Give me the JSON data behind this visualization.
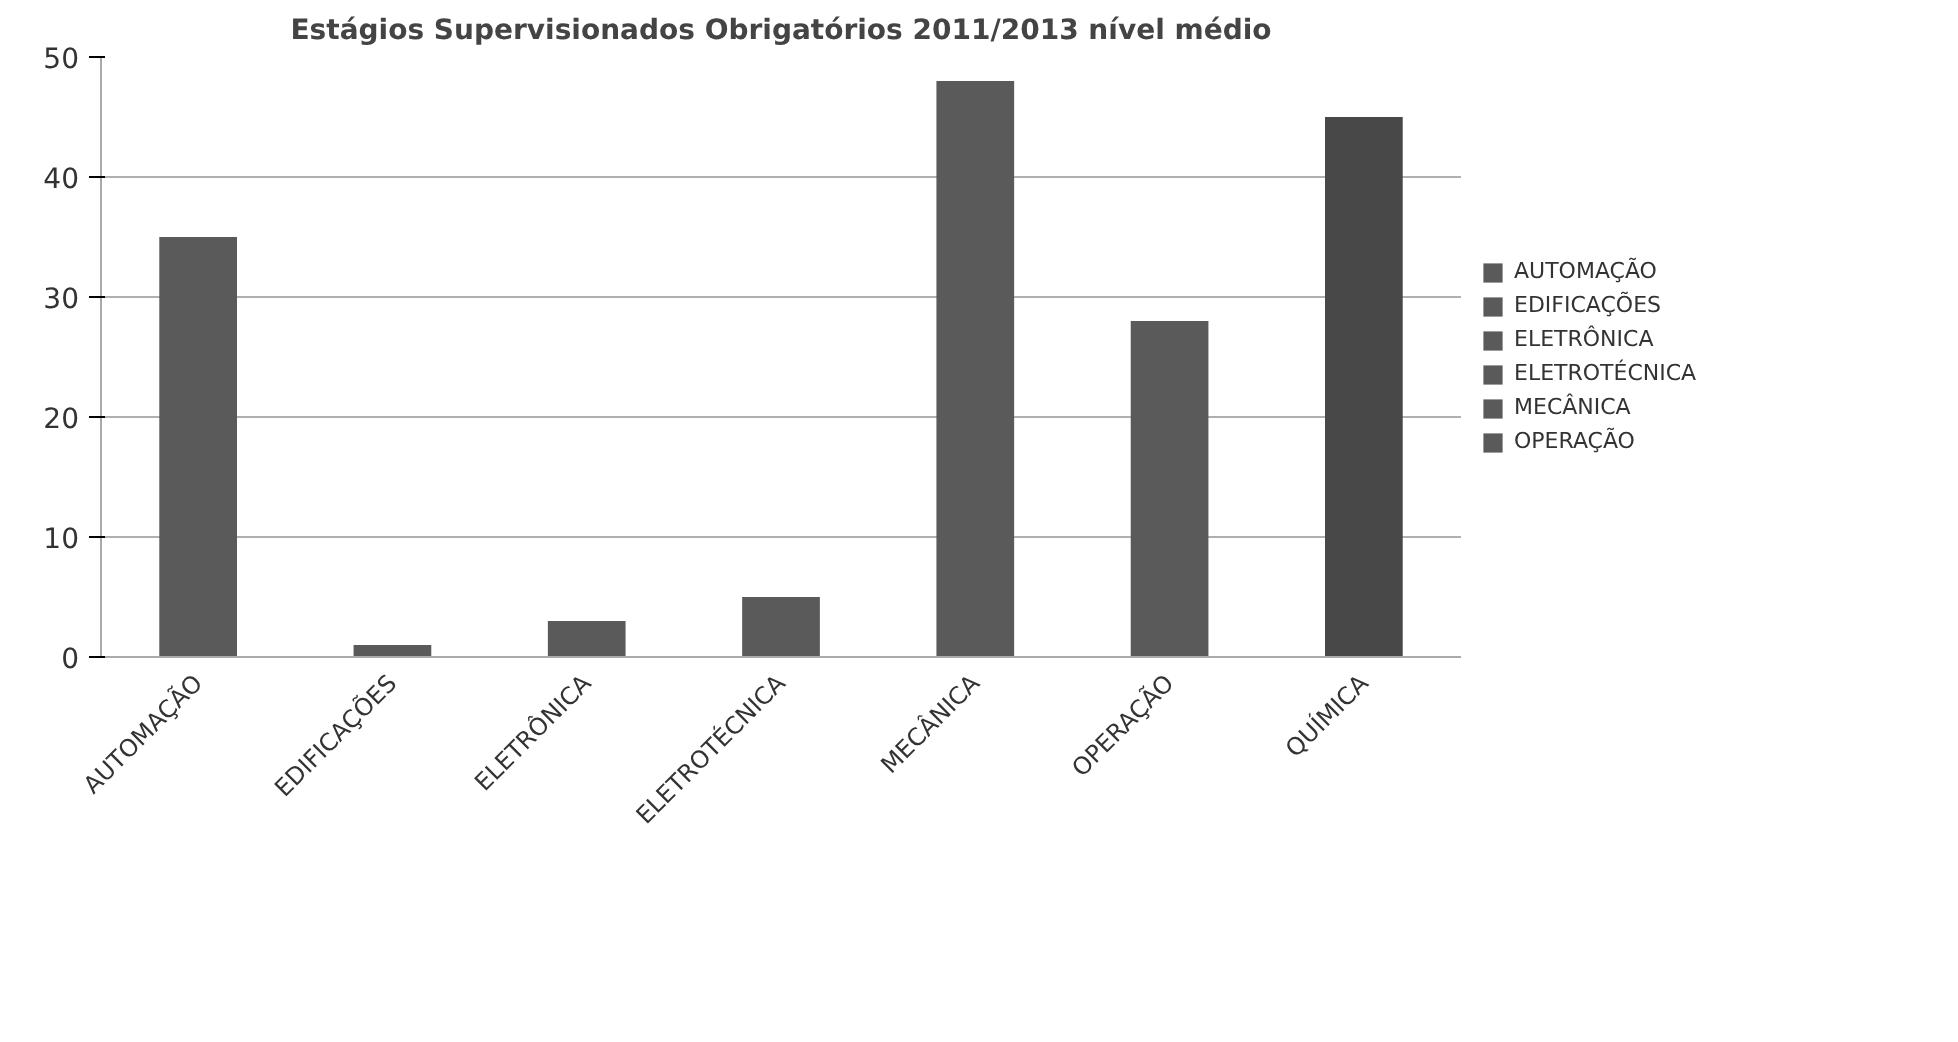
{
  "chart_data": {
    "type": "bar",
    "title": "Estágios Supervisionados Obrigatórios 2011/2013 nível médio",
    "categories": [
      "AUTOMAÇÃO",
      "EDIFICAÇÕES",
      "ELETRÔNICA",
      "ELETROTÉCNICA",
      "MECÂNICA",
      "OPERAÇÃO",
      "QUÍMICA"
    ],
    "series": [
      {
        "name": "AUTOMAÇÃO",
        "color": "#5a5a5a",
        "values": [
          35,
          null,
          null,
          null,
          null,
          null,
          null
        ]
      },
      {
        "name": "EDIFICAÇÕES",
        "color": "#5a5a5a",
        "values": [
          null,
          1,
          null,
          null,
          null,
          null,
          null
        ]
      },
      {
        "name": "ELETRÔNICA",
        "color": "#5a5a5a",
        "values": [
          null,
          null,
          3,
          null,
          null,
          null,
          null
        ]
      },
      {
        "name": "ELETROTÉCNICA",
        "color": "#5a5a5a",
        "values": [
          null,
          null,
          null,
          5,
          null,
          null,
          null
        ]
      },
      {
        "name": "MECÂNICA",
        "color": "#5a5a5a",
        "values": [
          null,
          null,
          null,
          null,
          48,
          null,
          null
        ]
      },
      {
        "name": "OPERAÇÃO",
        "color": "#5a5a5a",
        "values": [
          null,
          null,
          null,
          null,
          null,
          28,
          null
        ]
      },
      {
        "color": "#484848",
        "values": [
          null,
          null,
          null,
          null,
          null,
          null,
          45
        ]
      }
    ],
    "ylim": [
      0,
      50
    ],
    "yticks": [
      0,
      10,
      20,
      30,
      40,
      50
    ],
    "grid": "y",
    "legend": "right"
  }
}
